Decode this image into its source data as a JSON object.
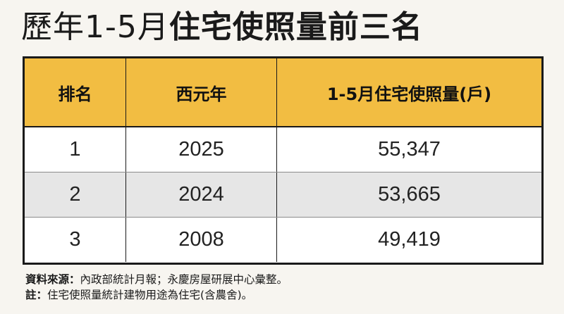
{
  "title": {
    "light": "歷年1-5月",
    "bold": "住宅使照量前三名"
  },
  "table": {
    "headers": [
      "排名",
      "西元年",
      "1-5月住宅使照量(戶)"
    ],
    "rows": [
      [
        "1",
        "2025",
        "55,347"
      ],
      [
        "2",
        "2024",
        "53,665"
      ],
      [
        "3",
        "2008",
        "49,419"
      ]
    ]
  },
  "notes": {
    "source_label": "資料來源：",
    "source_text": "內政部統計月報；永慶房屋研展中心彙整。",
    "note_label": "註：",
    "note_text": "住宅使照量統計建物用途為住宅(含農舍)。"
  },
  "colors": {
    "header_bg": "#f2bd42",
    "shaded_row_bg": "#e6e6e6",
    "page_bg": "#f7f5f0"
  }
}
